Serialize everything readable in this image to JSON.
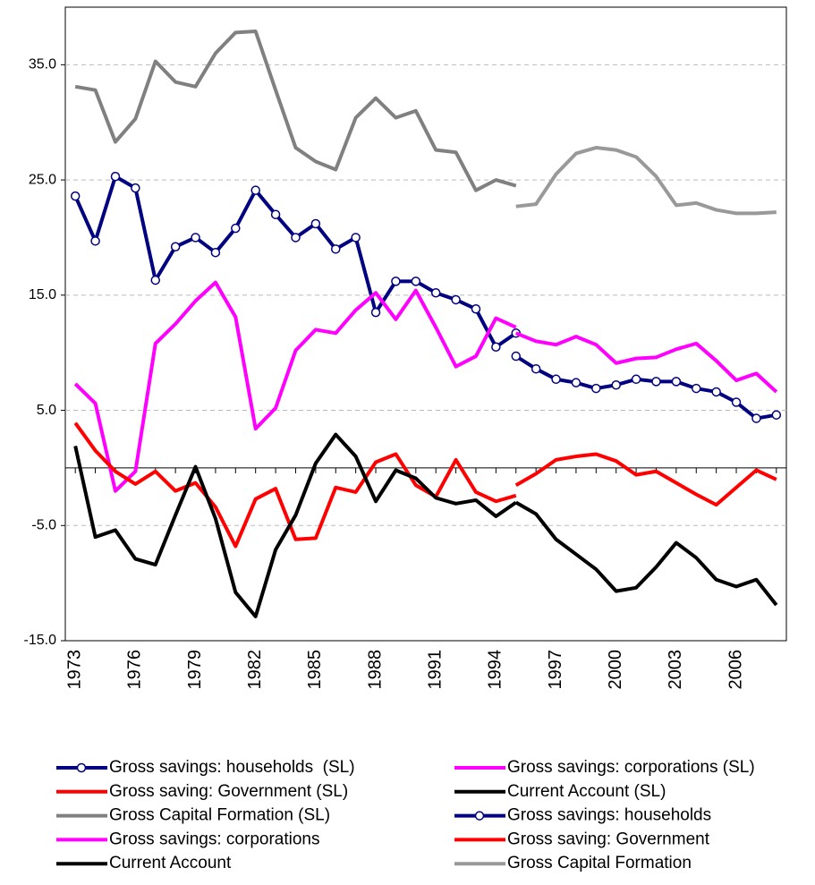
{
  "chart_data": {
    "type": "line",
    "x": [
      1973,
      1974,
      1975,
      1976,
      1977,
      1978,
      1979,
      1980,
      1981,
      1982,
      1983,
      1984,
      1985,
      1986,
      1987,
      1988,
      1989,
      1990,
      1991,
      1992,
      1993,
      1994,
      1995,
      1996,
      1997,
      1998,
      1999,
      2000,
      2001,
      2002,
      2003,
      2004,
      2005,
      2006,
      2007,
      2008
    ],
    "xlim": [
      1972.5,
      2008.5
    ],
    "xticks": [
      1973,
      1976,
      1979,
      1982,
      1985,
      1988,
      1991,
      1994,
      1997,
      2000,
      2003,
      2006
    ],
    "ylim": [
      -15,
      40
    ],
    "yticks": [
      {
        "value": -15,
        "label": "-15.0"
      },
      {
        "value": -5,
        "label": "-5.0"
      },
      {
        "value": 5,
        "label": "5.0"
      },
      {
        "value": 15,
        "label": "15.0"
      },
      {
        "value": 25,
        "label": "25.0"
      },
      {
        "value": 35,
        "label": "35.0"
      }
    ],
    "grid": true,
    "legend": "bottom",
    "series": [
      {
        "name": "Gross savings: households  (SL)",
        "color": "#000080",
        "marker": "circle",
        "values": [
          23.6,
          19.7,
          25.3,
          24.3,
          16.3,
          19.2,
          20.0,
          18.7,
          20.8,
          24.1,
          22.0,
          20.0,
          21.2,
          19.0,
          20.0,
          13.5,
          16.2,
          16.2,
          15.2,
          14.6,
          13.8,
          10.5,
          11.7,
          null,
          null,
          null,
          null,
          null,
          null,
          null,
          null,
          null,
          null,
          null,
          null,
          null
        ]
      },
      {
        "name": "Gross savings: corporations (SL)",
        "color": "#ff00ff",
        "values": [
          7.3,
          5.6,
          -2.0,
          -0.3,
          10.8,
          12.5,
          14.5,
          16.1,
          13.1,
          3.4,
          5.2,
          10.2,
          12.0,
          11.7,
          13.7,
          15.2,
          12.9,
          15.4,
          12.2,
          8.8,
          9.7,
          13.0,
          12.2,
          null,
          null,
          null,
          null,
          null,
          null,
          null,
          null,
          null,
          null,
          null,
          null,
          null
        ]
      },
      {
        "name": "Gross saving: Government (SL)",
        "color": "#ff0000",
        "values": [
          3.9,
          1.5,
          -0.3,
          -1.4,
          -0.3,
          -2.0,
          -1.3,
          -3.4,
          -6.8,
          -2.7,
          -1.8,
          -6.2,
          -6.1,
          -1.7,
          -2.1,
          0.5,
          1.2,
          -1.5,
          -2.5,
          0.7,
          -2.1,
          -2.9,
          -2.4,
          null,
          null,
          null,
          null,
          null,
          null,
          null,
          null,
          null,
          null,
          null,
          null,
          null
        ]
      },
      {
        "name": "Current Account (SL)",
        "color": "#000000",
        "values": [
          1.9,
          -6.0,
          -5.4,
          -7.9,
          -8.4,
          -4.1,
          0.1,
          -4.4,
          -10.8,
          -12.9,
          -7.1,
          -4.1,
          0.4,
          2.9,
          1.0,
          -2.9,
          -0.2,
          -0.9,
          -2.6,
          -3.1,
          -2.8,
          -4.2,
          -3.0,
          null,
          null,
          null,
          null,
          null,
          null,
          null,
          null,
          null,
          null,
          null,
          null,
          null
        ]
      },
      {
        "name": "Gross Capital Formation (SL)",
        "color": "#808080",
        "values": [
          33.1,
          32.8,
          28.3,
          30.3,
          35.3,
          33.5,
          33.1,
          36.0,
          37.8,
          37.9,
          32.8,
          27.8,
          26.6,
          25.9,
          30.4,
          32.1,
          30.4,
          31.0,
          27.6,
          27.4,
          24.1,
          25.0,
          24.5,
          null,
          null,
          null,
          null,
          null,
          null,
          null,
          null,
          null,
          null,
          null,
          null,
          null
        ]
      },
      {
        "name": "Gross savings: households",
        "color": "#000080",
        "marker": "circle",
        "values": [
          null,
          null,
          null,
          null,
          null,
          null,
          null,
          null,
          null,
          null,
          null,
          null,
          null,
          null,
          null,
          null,
          null,
          null,
          null,
          null,
          null,
          null,
          9.7,
          8.6,
          7.7,
          7.4,
          6.9,
          7.2,
          7.7,
          7.5,
          7.5,
          6.9,
          6.6,
          5.7,
          4.3,
          4.6
        ]
      },
      {
        "name": "Gross savings: corporations",
        "color": "#ff00ff",
        "values": [
          null,
          null,
          null,
          null,
          null,
          null,
          null,
          null,
          null,
          null,
          null,
          null,
          null,
          null,
          null,
          null,
          null,
          null,
          null,
          null,
          null,
          null,
          11.7,
          11.0,
          10.7,
          11.4,
          10.7,
          9.1,
          9.5,
          9.6,
          10.3,
          10.8,
          9.3,
          7.6,
          8.2,
          6.6
        ]
      },
      {
        "name": "Gross saving: Government",
        "color": "#ff0000",
        "values": [
          null,
          null,
          null,
          null,
          null,
          null,
          null,
          null,
          null,
          null,
          null,
          null,
          null,
          null,
          null,
          null,
          null,
          null,
          null,
          null,
          null,
          null,
          -1.5,
          -0.5,
          0.7,
          1.0,
          1.2,
          0.6,
          -0.6,
          -0.3,
          -1.3,
          -2.3,
          -3.2,
          -1.7,
          -0.2,
          -1.0
        ]
      },
      {
        "name": "Current Account",
        "color": "#000000",
        "values": [
          null,
          null,
          null,
          null,
          null,
          null,
          null,
          null,
          null,
          null,
          null,
          null,
          null,
          null,
          null,
          null,
          null,
          null,
          null,
          null,
          null,
          null,
          -3.0,
          -4.0,
          -6.2,
          -7.5,
          -8.8,
          -10.7,
          -10.4,
          -8.6,
          -6.5,
          -7.8,
          -9.7,
          -10.3,
          -9.7,
          -11.9
        ]
      },
      {
        "name": "Gross Capital Formation",
        "color": "#999999",
        "values": [
          null,
          null,
          null,
          null,
          null,
          null,
          null,
          null,
          null,
          null,
          null,
          null,
          null,
          null,
          null,
          null,
          null,
          null,
          null,
          null,
          null,
          null,
          22.7,
          22.9,
          25.5,
          27.3,
          27.8,
          27.6,
          27.0,
          25.3,
          22.8,
          23.0,
          22.4,
          22.1,
          22.1,
          22.2
        ]
      }
    ]
  }
}
